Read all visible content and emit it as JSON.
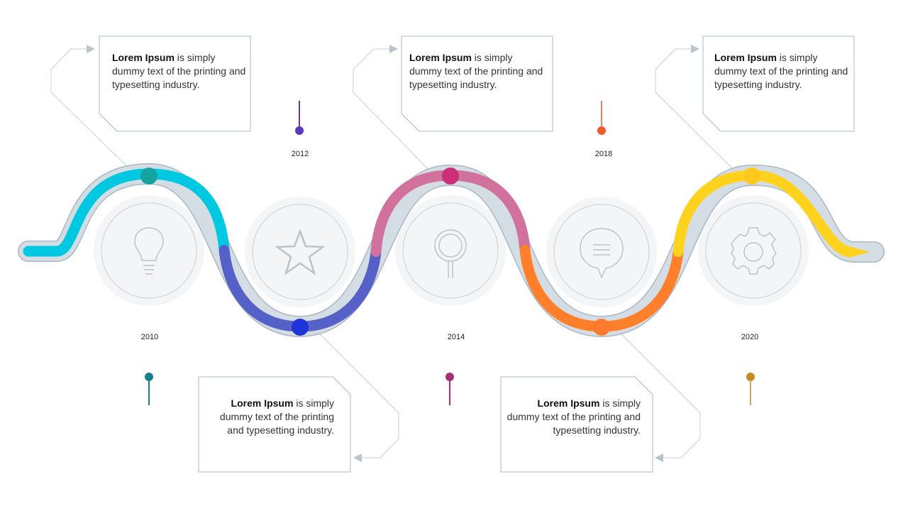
{
  "colors": {
    "cyan": "#00c8e0",
    "indigo": "#5661c8",
    "pink": "#d0719e",
    "orange": "#ff7f2a",
    "yellow": "#ffd21e",
    "track": "#d3dde3",
    "outline": "#aab8c4",
    "circle_fill": "#f4f5f6"
  },
  "milestones": [
    {
      "year": "2010",
      "bold": "Lorem Ipsum",
      "text": " is simply dummy text of the printing and typesetting industry.",
      "icon": "lightbulb-icon",
      "dot_color": "#16a3a0",
      "pin_color": "#16808c"
    },
    {
      "year": "2012",
      "bold": "Lorem Ipsum",
      "text": " is simply dummy text of the printing and typesetting industry.",
      "icon": "star-icon",
      "dot_color": "#1e33d8",
      "pin_color": "#5a3ab8"
    },
    {
      "year": "2014",
      "bold": "Lorem Ipsum",
      "text": " is simply dummy text of the printing and typesetting industry.",
      "icon": "magnifier-icon",
      "dot_color": "#cc2f78",
      "pin_color": "#a83070"
    },
    {
      "year": "2018",
      "bold": "Lorem Ipsum",
      "text": " is simply dummy text of the printing and typesetting industry.",
      "icon": "chat-bubble-icon",
      "dot_color": "#ff7a2a",
      "pin_color": "#f05a2a"
    },
    {
      "year": "2020",
      "bold": "Lorem Ipsum",
      "text": " is simply dummy text of the printing and typesetting industry.",
      "icon": "gear-icon",
      "dot_color": "#ffc81e",
      "pin_color": "#c88a1e"
    }
  ],
  "extra_box": {
    "bold": "Lorem Ipsum",
    "text": " is simply dummy text of the printing and typesetting industry."
  }
}
